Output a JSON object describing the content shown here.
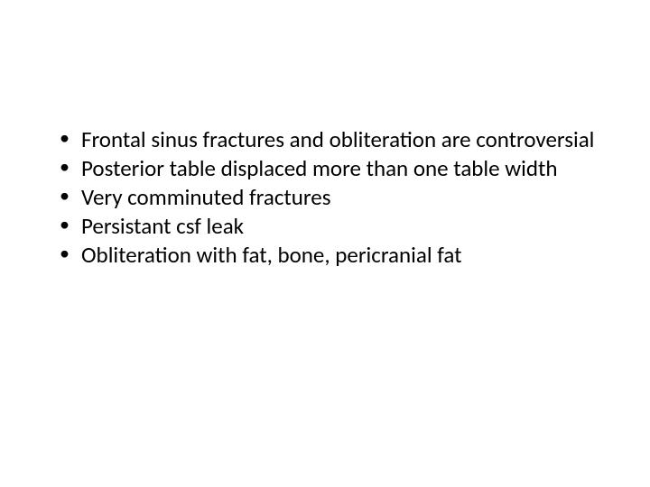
{
  "slide": {
    "background_color": "#ffffff",
    "text_color": "#000000",
    "font_family": "Calibri",
    "bullet_fontsize": 25,
    "bullets": [
      "Frontal sinus fractures and obliteration are controversial",
      "Posterior table displaced more than one table width",
      "Very comminuted fractures",
      "Persistant csf leak",
      "Obliteration with fat, bone, pericranial fat"
    ]
  }
}
